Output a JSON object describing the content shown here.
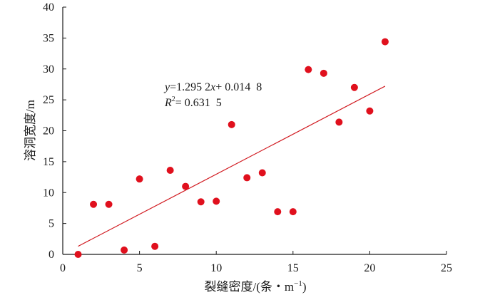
{
  "chart_data": {
    "type": "scatter",
    "title": "",
    "xlabel": "裂缝密度/(条・m",
    "xlabel_sup": "−1",
    "xlabel_suffix": ")",
    "ylabel": "溶洞宽度/m",
    "xlim": [
      0,
      25
    ],
    "ylim": [
      0,
      40
    ],
    "xticks": [
      0,
      5,
      10,
      15,
      20,
      25
    ],
    "yticks": [
      0,
      5,
      10,
      15,
      20,
      25,
      30,
      35,
      40
    ],
    "grid": false,
    "point_color": "#e0101d",
    "line_color": "#d11a20",
    "series": [
      {
        "x": [
          1,
          2,
          3,
          4,
          5,
          6,
          7,
          8,
          9,
          10,
          11,
          12,
          13,
          14,
          15,
          16,
          17,
          18,
          19,
          20,
          21
        ],
        "y": [
          0,
          8.1,
          8.1,
          0.7,
          12.2,
          1.3,
          13.6,
          11.0,
          8.5,
          8.6,
          21.0,
          12.4,
          13.2,
          6.9,
          6.9,
          29.9,
          29.3,
          21.4,
          27.0,
          23.2,
          34.4
        ]
      }
    ],
    "trendline": {
      "slope": 1.2952,
      "intercept": 0.0148,
      "x_range": [
        1,
        21
      ]
    },
    "annotation": {
      "eq_y": "y",
      "eq_mid": "=1.295 2",
      "eq_x": "x",
      "eq_rest": "+ 0.014  8",
      "r2_r": "R",
      "r2_sup": "2",
      "r2_rest": "= 0.631  5"
    }
  }
}
